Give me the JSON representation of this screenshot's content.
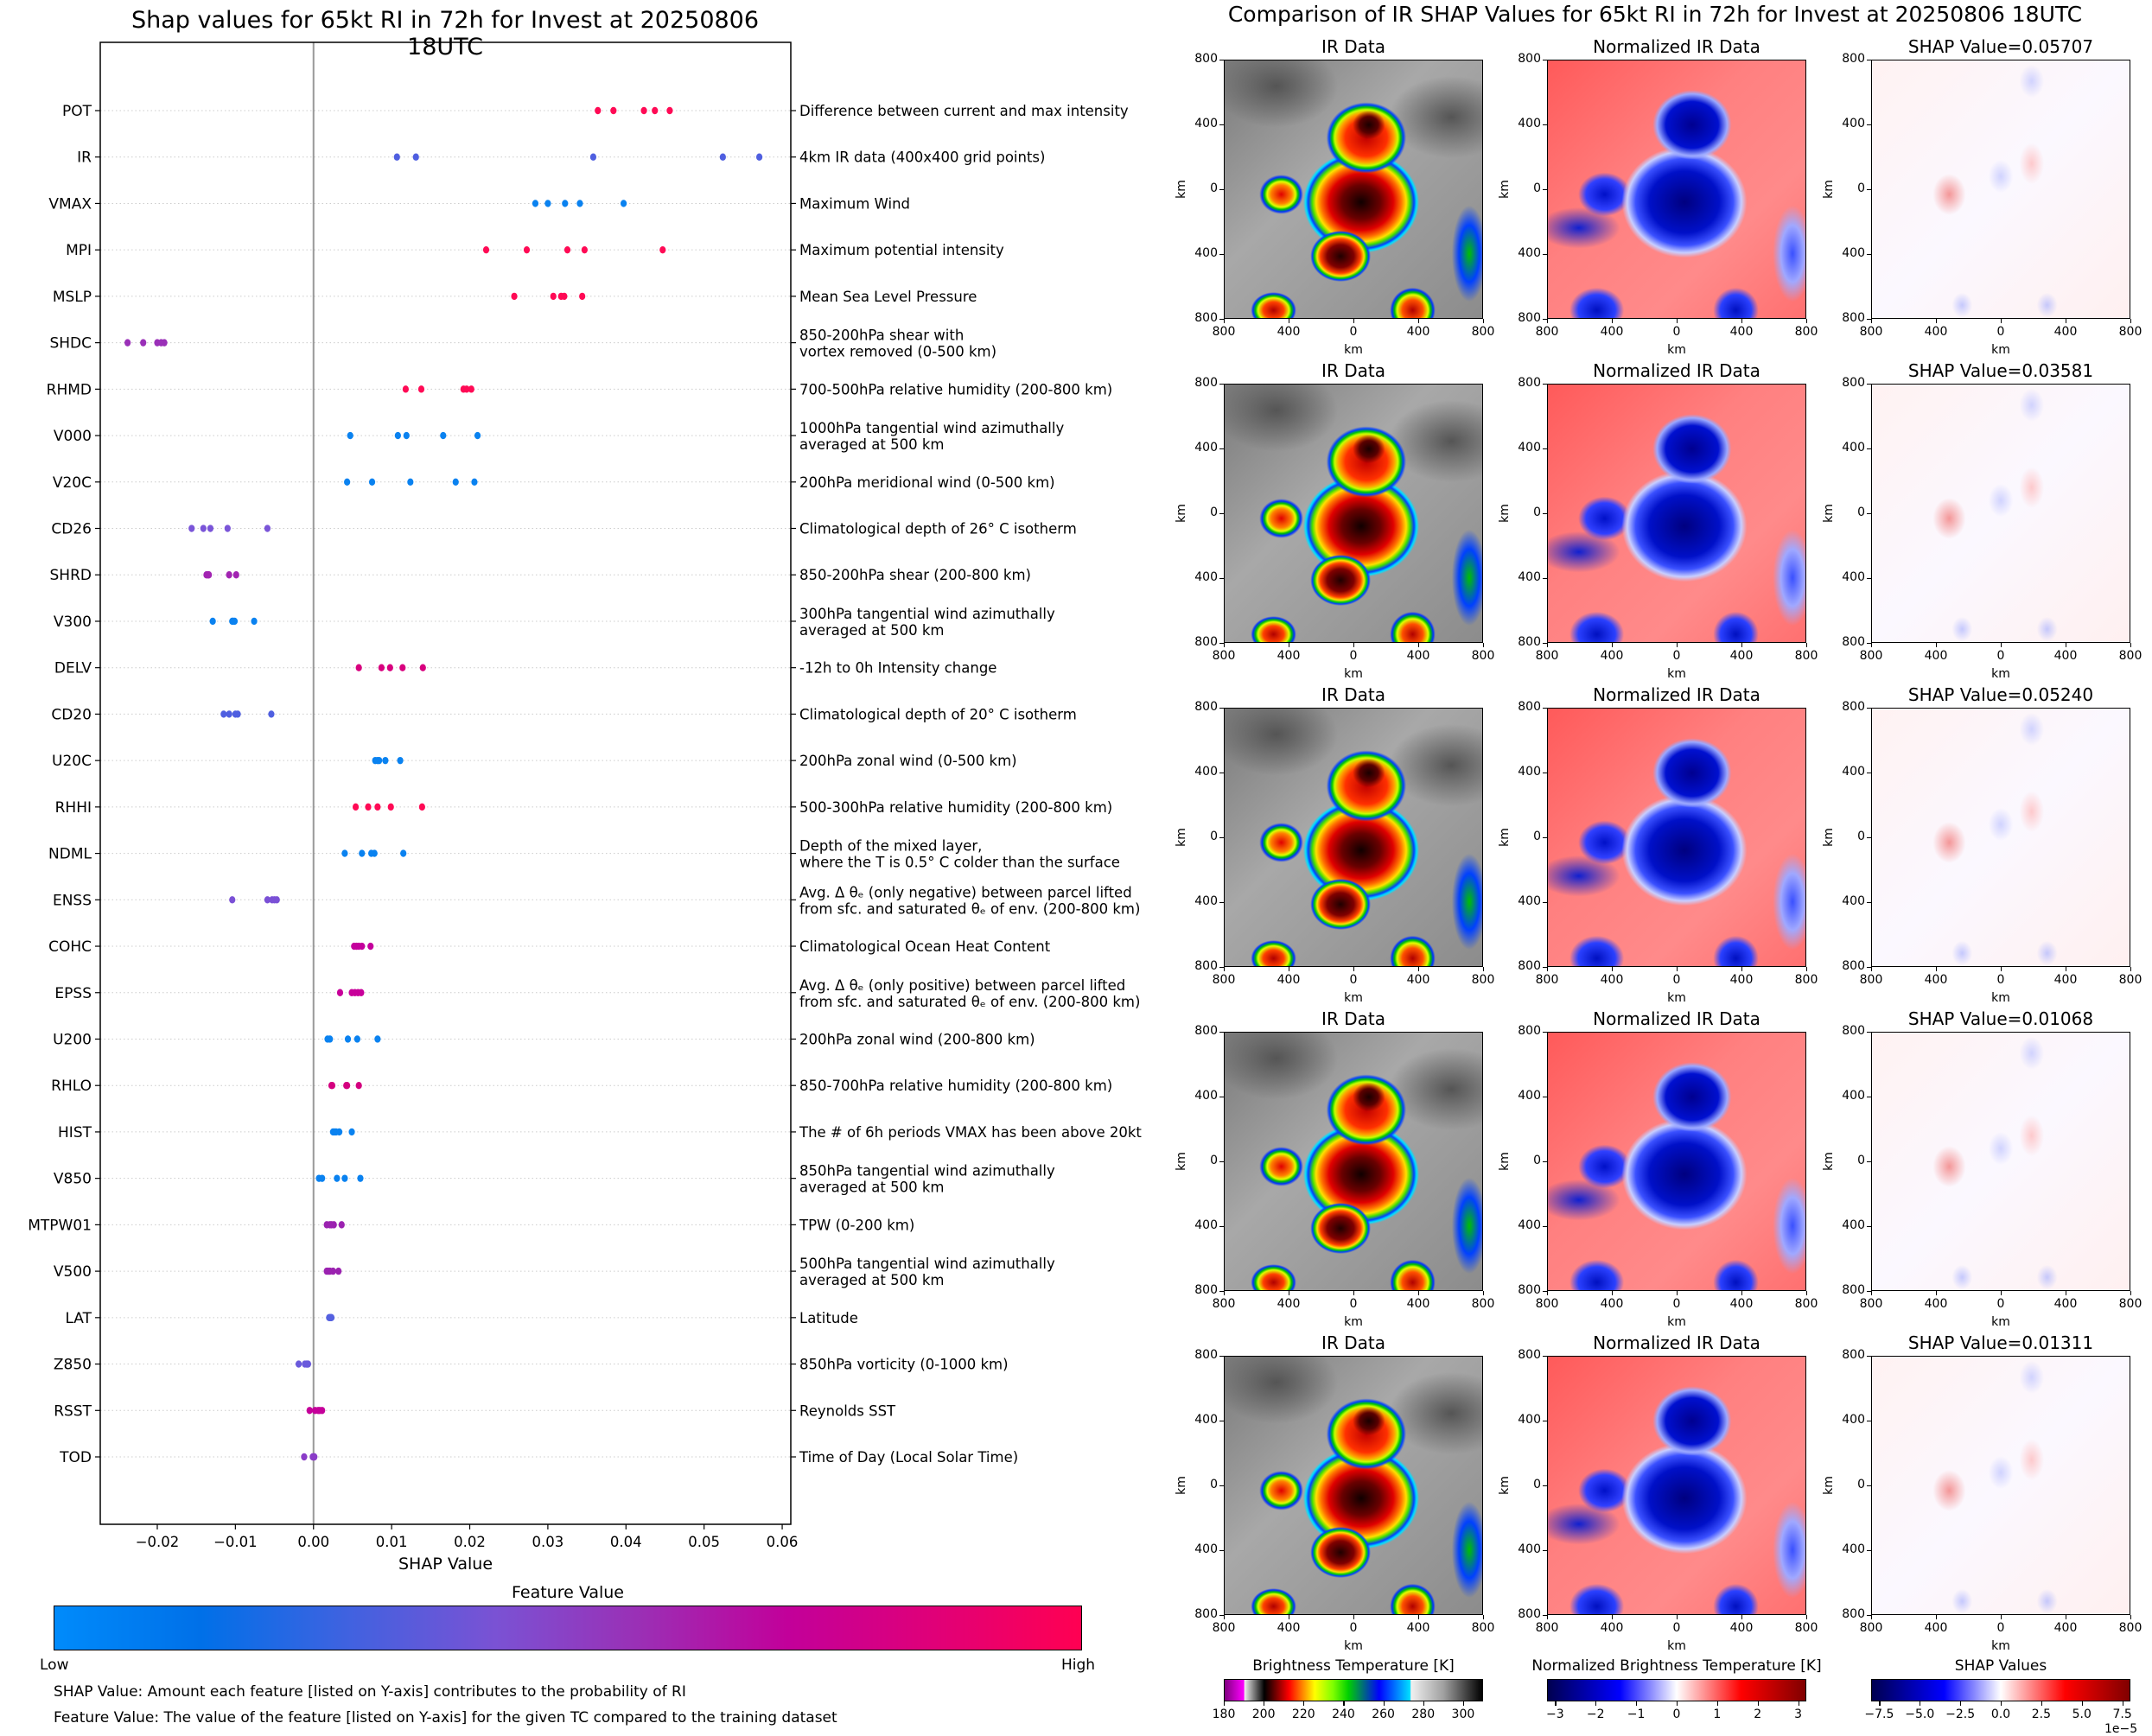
{
  "chart_data": [
    {
      "type": "scatter",
      "title": "Shap values for 65kt RI in 72h for Invest at 20250806 18UTC",
      "xlabel": "SHAP Value",
      "ylabel": "",
      "xlim": [
        -0.0273,
        0.0611
      ],
      "xticks": [
        -0.02,
        -0.01,
        0.0,
        0.01,
        0.02,
        0.03,
        0.04,
        0.05,
        0.06
      ],
      "xtick_labels": [
        "−0.02",
        "−0.01",
        "0.00",
        "0.01",
        "0.02",
        "0.03",
        "0.04",
        "0.05",
        "0.06"
      ],
      "grid": "horizontal dotted",
      "zero_line": true,
      "colorbar": {
        "title": "Feature Value",
        "low_label": "Low",
        "high_label": "High",
        "stops": [
          "#008bfb",
          "#0070e8",
          "#4062e0",
          "#7a52d4",
          "#9b2fb5",
          "#c2009a",
          "#e00078",
          "#ff0052"
        ]
      },
      "features": [
        {
          "code": "POT",
          "desc": [
            "Difference between current and max intensity"
          ],
          "color": "#ff0a55",
          "values": [
            0.0364,
            0.0384,
            0.0423,
            0.0437,
            0.0456
          ]
        },
        {
          "code": "IR",
          "desc": [
            "4km IR data (400x400 grid points)"
          ],
          "color": "#4f5fe0",
          "values": [
            0.01068,
            0.01311,
            0.03581,
            0.0524,
            0.05707
          ]
        },
        {
          "code": "VMAX",
          "desc": [
            "Maximum Wind"
          ],
          "color": "#0a82f0",
          "values": [
            0.0284,
            0.03,
            0.0322,
            0.0341,
            0.0397
          ]
        },
        {
          "code": "MPI",
          "desc": [
            "Maximum potential intensity"
          ],
          "color": "#ff0a55",
          "values": [
            0.0221,
            0.0273,
            0.0325,
            0.0347,
            0.0447
          ]
        },
        {
          "code": "MSLP",
          "desc": [
            "Mean Sea Level Pressure"
          ],
          "color": "#ff0a55",
          "values": [
            0.0257,
            0.0307,
            0.0317,
            0.0321,
            0.0344
          ]
        },
        {
          "code": "SHDC",
          "desc": [
            "850-200hPa shear with",
            "vortex removed (0-500 km)"
          ],
          "color": "#9a30b8",
          "values": [
            -0.0238,
            -0.0218,
            -0.02,
            -0.0195,
            -0.0191
          ]
        },
        {
          "code": "RHMD",
          "desc": [
            "700-500hPa relative humidity (200-800 km)"
          ],
          "color": "#ff0a55",
          "values": [
            0.0118,
            0.0138,
            0.0192,
            0.0196,
            0.0202
          ]
        },
        {
          "code": "V000",
          "desc": [
            "1000hPa tangential wind azimuthally",
            "averaged at 500 km"
          ],
          "color": "#0a82f0",
          "values": [
            0.0047,
            0.0108,
            0.0119,
            0.0166,
            0.021
          ]
        },
        {
          "code": "V20C",
          "desc": [
            "200hPa meridional wind (0-500 km)"
          ],
          "color": "#0a82f0",
          "values": [
            0.0043,
            0.0075,
            0.0124,
            0.0182,
            0.0206
          ]
        },
        {
          "code": "CD26",
          "desc": [
            "Climatological depth of 26° C isotherm"
          ],
          "color": "#7a55d8",
          "values": [
            -0.0156,
            -0.0141,
            -0.0132,
            -0.011,
            -0.0059
          ]
        },
        {
          "code": "SHRD",
          "desc": [
            "850-200hPa shear (200-800 km)"
          ],
          "color": "#a224b2",
          "values": [
            -0.0137,
            -0.0135,
            -0.0134,
            -0.0108,
            -0.0099
          ]
        },
        {
          "code": "V300",
          "desc": [
            "300hPa tangential wind azimuthally",
            "averaged at 500 km"
          ],
          "color": "#0a82f0",
          "values": [
            -0.0129,
            -0.0104,
            -0.0103,
            -0.0101,
            -0.0076
          ]
        },
        {
          "code": "DELV",
          "desc": [
            "-12h to 0h Intensity change"
          ],
          "color": "#d8007e",
          "values": [
            0.0058,
            0.0087,
            0.0098,
            0.0114,
            0.014
          ]
        },
        {
          "code": "CD20",
          "desc": [
            "Climatological depth of 20° C isotherm"
          ],
          "color": "#4f5fe0",
          "values": [
            -0.0115,
            -0.0108,
            -0.01,
            -0.0097,
            -0.0054
          ]
        },
        {
          "code": "U20C",
          "desc": [
            "200hPa zonal wind (0-500 km)"
          ],
          "color": "#0a82f0",
          "values": [
            0.0079,
            0.0082,
            0.0084,
            0.0092,
            0.0111
          ]
        },
        {
          "code": "RHHI",
          "desc": [
            "500-300hPa relative humidity (200-800 km)"
          ],
          "color": "#ff0a55",
          "values": [
            0.0054,
            0.007,
            0.0082,
            0.0099,
            0.0139
          ]
        },
        {
          "code": "NDML",
          "desc": [
            "Depth of the mixed layer,",
            "where the T is 0.5° C colder than the surface"
          ],
          "color": "#0a82f0",
          "values": [
            0.004,
            0.0062,
            0.0074,
            0.0078,
            0.0115
          ]
        },
        {
          "code": "ENSS",
          "desc": [
            "Avg. Δ θₑ (only negative) between parcel lifted",
            "from sfc. and saturated θₑ of env. (200-800 km)"
          ],
          "color": "#7a50d6",
          "values": [
            -0.0104,
            -0.0059,
            -0.0053,
            -0.005,
            -0.0047
          ]
        },
        {
          "code": "COHC",
          "desc": [
            "Climatological Ocean Heat Content"
          ],
          "color": "#c4009c",
          "values": [
            0.0052,
            0.0055,
            0.0058,
            0.0062,
            0.0073
          ]
        },
        {
          "code": "EPSS",
          "desc": [
            "Avg. Δ θₑ (only positive) between parcel lifted",
            "from sfc. and saturated θₑ of env. (200-800 km)"
          ],
          "color": "#c8009a",
          "values": [
            0.0034,
            0.0049,
            0.0053,
            0.0057,
            0.0061
          ]
        },
        {
          "code": "U200",
          "desc": [
            "200hPa zonal wind (200-800 km)"
          ],
          "color": "#0a82f0",
          "values": [
            0.0018,
            0.0021,
            0.0044,
            0.0056,
            0.0082
          ]
        },
        {
          "code": "RHLO",
          "desc": [
            "850-700hPa relative humidity (200-800 km)"
          ],
          "color": "#d4007f",
          "values": [
            0.0023,
            0.0024,
            0.0042,
            0.0043,
            0.0058
          ]
        },
        {
          "code": "HIST",
          "desc": [
            "The # of 6h periods VMAX has been above 20kt"
          ],
          "color": "#0a82f0",
          "values": [
            0.0025,
            0.0027,
            0.0029,
            0.0033,
            0.0049
          ]
        },
        {
          "code": "V850",
          "desc": [
            "850hPa tangential wind azimuthally",
            "averaged at 500 km"
          ],
          "color": "#0a82f0",
          "values": [
            0.0007,
            0.0011,
            0.003,
            0.004,
            0.006
          ]
        },
        {
          "code": "MTPW01",
          "desc": [
            "TPW (0-200 km)"
          ],
          "color": "#9b22b0",
          "values": [
            0.0017,
            0.0021,
            0.0023,
            0.0026,
            0.0036
          ]
        },
        {
          "code": "V500",
          "desc": [
            "500hPa tangential wind azimuthally",
            "averaged at 500 km"
          ],
          "color": "#9b22b0",
          "values": [
            0.0017,
            0.0019,
            0.0021,
            0.0025,
            0.0032
          ]
        },
        {
          "code": "LAT",
          "desc": [
            "Latitude"
          ],
          "color": "#5561e0",
          "values": [
            0.002,
            0.0021,
            0.0022,
            0.0022,
            0.0023
          ]
        },
        {
          "code": "Z850",
          "desc": [
            "850hPa vorticity (0-1000 km)"
          ],
          "color": "#6a5adc",
          "values": [
            -0.0019,
            -0.0011,
            -0.0009,
            -0.0008,
            -0.0007
          ]
        },
        {
          "code": "RSST",
          "desc": [
            "Reynolds SST"
          ],
          "color": "#c5009a",
          "values": [
            -0.0005,
            0.0002,
            0.0006,
            0.0008,
            0.0011
          ]
        },
        {
          "code": "TOD",
          "desc": [
            "Time of Day (Local Solar Time)"
          ],
          "color": "#8a3cc8",
          "values": [
            -0.0012,
            -0.0001,
            0.0,
            0.0001,
            0.0001
          ]
        }
      ]
    },
    {
      "type": "heatmap",
      "title": "Comparison of IR SHAP Values for 65kt RI in 72h for Invest at 20250806 18UTC",
      "columns": [
        "IR Data",
        "Normalized IR Data",
        "SHAP Value"
      ],
      "rows_shap_values": [
        "0.05707",
        "0.03581",
        "0.05240",
        "0.01068",
        "0.01311"
      ],
      "axis_extent_km": [
        -800,
        800
      ],
      "axis_ticks": [
        "800",
        "400",
        "0",
        "400",
        "800"
      ],
      "xlabel": "km",
      "ylabel": "km",
      "colorbars": [
        {
          "title": "Brightness Temperature [K]",
          "range": [
            180,
            310
          ],
          "ticks": [
            "180",
            "200",
            "220",
            "240",
            "260",
            "280",
            "300"
          ],
          "tick_values": [
            180,
            200,
            220,
            240,
            260,
            280,
            300
          ]
        },
        {
          "title": "Normalized Brightness Temperature [K]",
          "range": [
            -3.2,
            3.2
          ],
          "ticks": [
            "−3",
            "−2",
            "−1",
            "0",
            "1",
            "2",
            "3"
          ],
          "tick_values": [
            -3,
            -2,
            -1,
            0,
            1,
            2,
            3
          ]
        },
        {
          "title": "SHAP Values",
          "range": [
            -8,
            8
          ],
          "ticks": [
            "−7.5",
            "−5.0",
            "−2.5",
            "0.0",
            "2.5",
            "5.0",
            "7.5"
          ],
          "tick_values": [
            -7.5,
            -5,
            -2.5,
            0,
            2.5,
            5,
            7.5
          ],
          "offset_label": "1e−5"
        }
      ]
    }
  ],
  "left": {
    "title": "Shap values for 65kt RI in 72h for Invest at 20250806 18UTC",
    "xlabel": "SHAP Value",
    "colorbar_title": "Feature Value",
    "low": "Low",
    "high": "High",
    "note1": "SHAP Value: Amount each feature [listed on Y-axis] contributes to the probability of RI",
    "note2": "Feature Value: The value of the feature [listed on Y-axis] for the given TC compared to the training dataset"
  },
  "right": {
    "title": "Comparison of IR SHAP Values for 65kt RI in 72h for Invest at 20250806 18UTC",
    "col_ir": "IR Data",
    "col_norm": "Normalized IR Data",
    "shap_prefix": "SHAP Value=",
    "km": "km",
    "cbar_bt": "Brightness Temperature [K]",
    "cbar_norm": "Normalized Brightness Temperature [K]",
    "cbar_shap": "SHAP Values",
    "cbar_shap_offset": "1e−5"
  }
}
